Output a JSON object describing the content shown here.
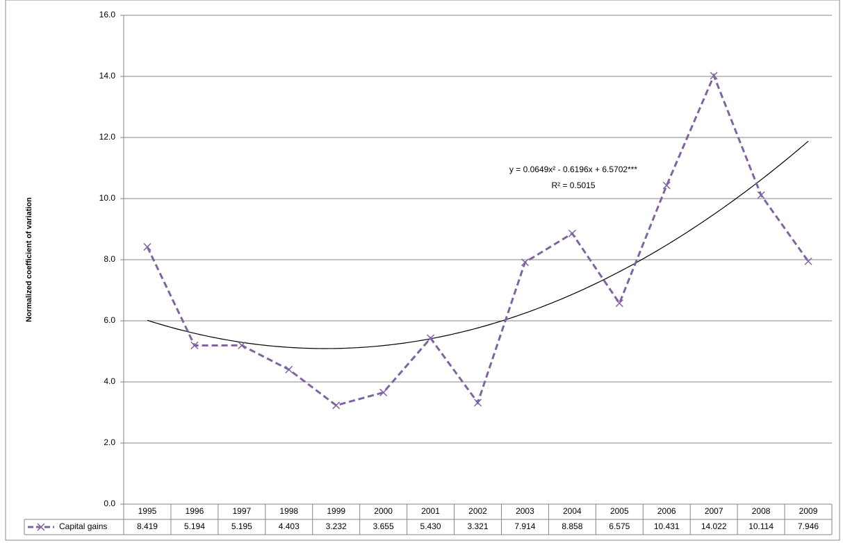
{
  "chart_data": {
    "type": "line",
    "y_label": "Normalized coefficient of variation",
    "categories": [
      "1995",
      "1996",
      "1997",
      "1998",
      "1999",
      "2000",
      "2001",
      "2002",
      "2003",
      "2004",
      "2005",
      "2006",
      "2007",
      "2008",
      "2009"
    ],
    "series": [
      {
        "name": "Capital gains",
        "color": "#8064a2",
        "values": [
          8.419,
          5.194,
          5.195,
          4.403,
          3.232,
          3.655,
          5.43,
          3.321,
          7.914,
          8.858,
          6.575,
          10.431,
          14.022,
          10.114,
          7.946
        ],
        "value_labels": [
          "8.419",
          "5.194",
          "5.195",
          "4.403",
          "3.232",
          "3.655",
          "5.430",
          "3.321",
          "7.914",
          "8.858",
          "6.575",
          "10.431",
          "14.022",
          "10.114",
          "7.946"
        ]
      }
    ],
    "trendline": {
      "equation": "y = 0.0649x² - 0.6196x + 6.5702***",
      "r_squared": "R² = 0.5015",
      "coefficients": [
        0.0649,
        -0.6196,
        6.5702
      ],
      "color": "#000000"
    },
    "ylim": [
      0,
      16
    ],
    "yticks": [
      {
        "value": 0,
        "label": "0.0"
      },
      {
        "value": 2,
        "label": "2.0"
      },
      {
        "value": 4,
        "label": "4.0"
      },
      {
        "value": 6,
        "label": "6.0"
      },
      {
        "value": 8,
        "label": "8.0"
      },
      {
        "value": 10,
        "label": "10.0"
      },
      {
        "value": 12,
        "label": "12.0"
      },
      {
        "value": 14,
        "label": "14.0"
      },
      {
        "value": 16,
        "label": "16.0"
      }
    ],
    "grid": true
  }
}
